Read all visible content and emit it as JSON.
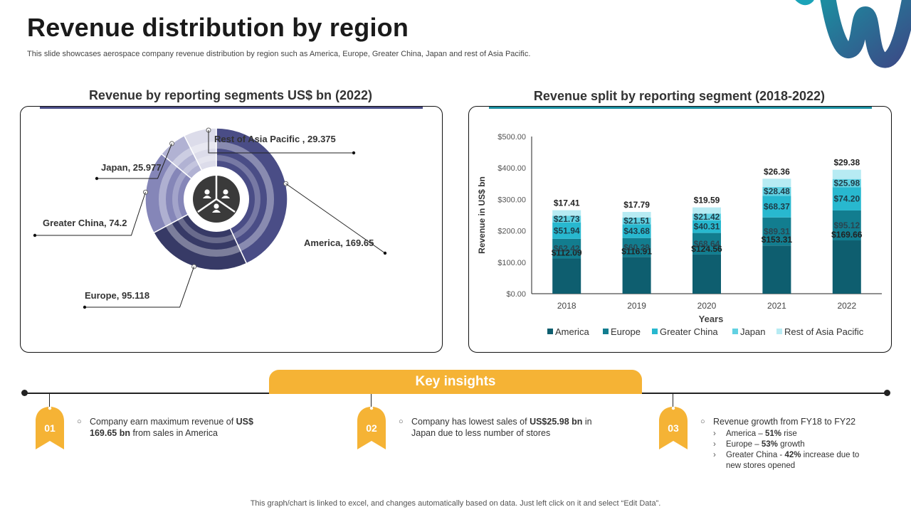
{
  "title": "Revenue distribution by region",
  "subtitle": "This slide showcases aerospace company revenue distribution by region such as America, Europe, Greater China, Japan and rest of Asia Pacific.",
  "colors": {
    "donut_america": "#4a4d86",
    "donut_europe": "#373a66",
    "donut_greater_china": "#8586b8",
    "donut_japan": "#b1b2d3",
    "donut_rest": "#dcdcea",
    "america": "#0e5e6f",
    "europe": "#127d8f",
    "greater_china": "#28b8cf",
    "japan": "#62d1e2",
    "rest": "#b7ebf3",
    "insight_orange": "#f5b335",
    "accent_left": "#4a4d86",
    "accent_right": "#1b8fa1"
  },
  "left_panel": {
    "title": "Revenue by reporting segments US$ bn (2022)",
    "center_icon": "people-group-icon"
  },
  "right_panel": {
    "title": "Revenue split by reporting segment (2018-2022)"
  },
  "chart_data": [
    {
      "type": "pie",
      "style": "donut",
      "title": "Revenue by reporting segments US$ bn (2022)",
      "slices": [
        {
          "label": "America",
          "value": 169.65,
          "display": "America, 169.65"
        },
        {
          "label": "Europe",
          "value": 95.118,
          "display": "Europe, 95.118"
        },
        {
          "label": "Greater China",
          "value": 74.2,
          "display": "Greater China, 74.2"
        },
        {
          "label": "Japan",
          "value": 25.977,
          "display": "Japan, 25.977"
        },
        {
          "label": "Rest of Asia Pacific",
          "value": 29.375,
          "display": "Rest of Asia Pacific , 29.375"
        }
      ]
    },
    {
      "type": "bar",
      "stacked": true,
      "title": "Revenue split by reporting segment (2018-2022)",
      "xlabel": "Years",
      "ylabel": "Revenue in US$ bn",
      "categories": [
        "2018",
        "2019",
        "2020",
        "2021",
        "2022"
      ],
      "ylim": [
        0,
        500
      ],
      "yticks": [
        "$0.00",
        "$100.00",
        "$200.00",
        "$300.00",
        "$400.00",
        "$500.00"
      ],
      "legend_position": "bottom",
      "series": [
        {
          "name": "America",
          "values": [
            112.09,
            116.91,
            124.56,
            153.31,
            169.66
          ],
          "labels": [
            "$112.09",
            "$116.91",
            "$124.56",
            "$153.31",
            "$169.66"
          ]
        },
        {
          "name": "Europe",
          "values": [
            62.42,
            60.29,
            68.64,
            89.31,
            95.12
          ],
          "labels": [
            "$62.42",
            "$60.29",
            "$68.64",
            "$89.31",
            "$95.12"
          ]
        },
        {
          "name": "Greater China",
          "values": [
            51.94,
            43.68,
            40.31,
            68.37,
            74.2
          ],
          "labels": [
            "$51.94",
            "$43.68",
            "$40.31",
            "$68.37",
            "$74.20"
          ]
        },
        {
          "name": "Japan",
          "values": [
            21.73,
            21.51,
            21.42,
            28.48,
            25.98
          ],
          "labels": [
            "$21.73",
            "$21.51",
            "$21.42",
            "$28.48",
            "$25.98"
          ]
        },
        {
          "name": "Rest of Asia Pacific",
          "values": [
            17.41,
            17.79,
            19.59,
            26.36,
            29.38
          ],
          "labels": [
            "$17.41",
            "$17.79",
            "$19.59",
            "$26.36",
            "$29.38"
          ]
        }
      ]
    }
  ],
  "insights": {
    "title": "Key insights",
    "items": [
      {
        "num": "01",
        "pre": "Company earn maximum revenue of ",
        "bold": "US$ 169.65 bn",
        "post": " from sales in America"
      },
      {
        "num": "02",
        "pre": "Company has lowest sales of ",
        "bold": "US$25.98 bn",
        "post": " in Japan due to less number of stores"
      },
      {
        "num": "03",
        "text": "Revenue growth from FY18 to FY22",
        "subs": [
          {
            "pre": "America – ",
            "bold": "51%",
            "post": " rise"
          },
          {
            "pre": "Europe – ",
            "bold": "53%",
            "post": " growth"
          },
          {
            "pre": "Greater China - ",
            "bold": "42%",
            "post": " increase due to new stores opened"
          }
        ]
      }
    ]
  },
  "footer": "This graph/chart is linked to excel, and changes automatically based on data. Just left click on it and select “Edit Data”."
}
